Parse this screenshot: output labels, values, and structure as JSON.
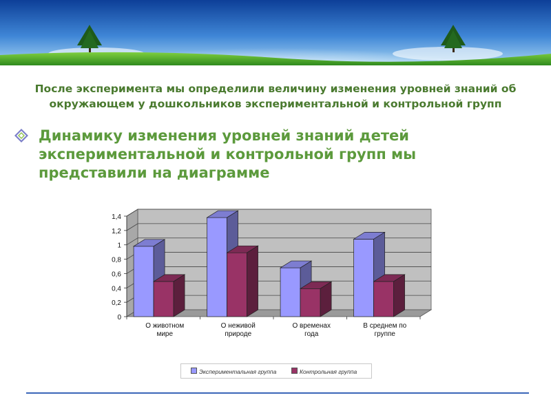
{
  "slide": {
    "heading": "После эксперимента мы определили величину изменения уровней знаний об окружающем у дошкольников экспериментальной и контрольной групп",
    "bullet_text": "Динамику изменения уровней знаний детей экспериментальной и контрольной групп мы представили на диаграмме",
    "bullet_icon": "diamond-bullet-icon",
    "colors": {
      "heading": "#4a7a2f",
      "bullet_text": "#5c9a3c",
      "footer_rule": "#3a66b8"
    }
  },
  "chart_data": {
    "type": "bar",
    "style": "3d-clustered-column",
    "categories": [
      [
        "О животном",
        "мире"
      ],
      [
        "О неживой",
        "природе"
      ],
      [
        "О временах",
        "года"
      ],
      [
        "В среднем по",
        "группе"
      ]
    ],
    "series": [
      {
        "name": "Экспериментальная группа",
        "values": [
          0.98,
          1.38,
          0.68,
          1.08
        ],
        "color": "#9999ff"
      },
      {
        "name": "Контрольная группа",
        "values": [
          0.49,
          0.89,
          0.39,
          0.49
        ],
        "color": "#993366"
      }
    ],
    "y_ticks": [
      "0",
      "0,2",
      "0,4",
      "0,6",
      "0,8",
      "1",
      "1,2",
      "1,4"
    ],
    "ylim": [
      0,
      1.4
    ],
    "grid": true,
    "legend_position": "bottom"
  }
}
